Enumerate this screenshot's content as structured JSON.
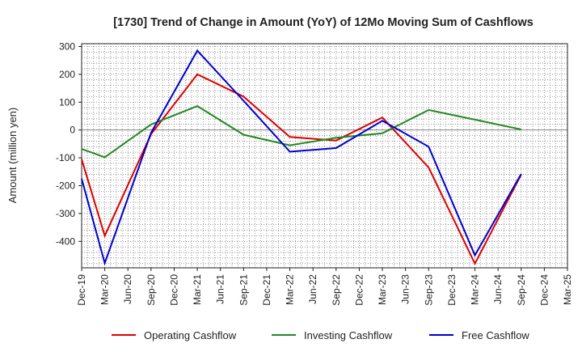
{
  "chart_data": {
    "type": "line",
    "title": "[1730]  Trend of Change in Amount (YoY) of 12Mo Moving Sum of Cashflows",
    "xlabel": "",
    "ylabel": "Amount (million yen)",
    "ylim": [
      -495,
      310
    ],
    "yticks": [
      300,
      200,
      100,
      0,
      -100,
      -200,
      -300,
      -400
    ],
    "categories": [
      "Dec-19",
      "Mar-20",
      "Jun-20",
      "Sep-20",
      "Dec-20",
      "Mar-21",
      "Jun-21",
      "Sep-21",
      "Dec-21",
      "Mar-22",
      "Jun-22",
      "Sep-22",
      "Dec-22",
      "Mar-23",
      "Jun-23",
      "Sep-23",
      "Dec-23",
      "Mar-24",
      "Jun-24",
      "Sep-24",
      "Dec-24",
      "Mar-25"
    ],
    "grid": true,
    "legend_position": "bottom",
    "series": [
      {
        "name": "Operating Cashflow",
        "color": "#dd0000",
        "values": [
          -105,
          -380,
          null,
          -15,
          null,
          200,
          null,
          120,
          null,
          -25,
          null,
          -38,
          null,
          45,
          null,
          -135,
          null,
          -480,
          null,
          -160,
          null,
          null
        ]
      },
      {
        "name": "Investing Cashflow",
        "color": "#228822",
        "values": [
          -68,
          -98,
          null,
          20,
          null,
          86,
          null,
          -17,
          null,
          -55,
          null,
          -28,
          null,
          -12,
          null,
          72,
          null,
          37,
          null,
          2,
          null,
          null
        ]
      },
      {
        "name": "Free Cashflow",
        "color": "#0000cc",
        "values": [
          -175,
          -478,
          null,
          -10,
          null,
          285,
          null,
          105,
          null,
          -78,
          null,
          -65,
          null,
          33,
          null,
          -60,
          null,
          -450,
          null,
          -158,
          null,
          null
        ]
      }
    ]
  }
}
